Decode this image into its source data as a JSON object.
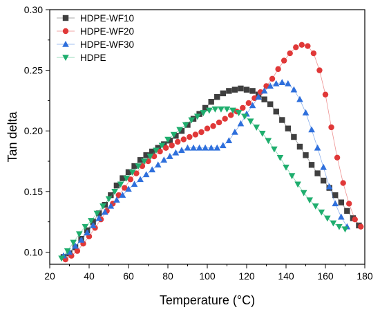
{
  "chart_data": {
    "type": "scatter",
    "xlabel": "Temperature (°C)",
    "ylabel": "Tan delta",
    "xlim": [
      20,
      180
    ],
    "ylim": [
      0.09,
      0.3
    ],
    "xticks": [
      20,
      40,
      60,
      80,
      100,
      120,
      140,
      160,
      180
    ],
    "yticks": [
      0.1,
      0.15,
      0.2,
      0.25,
      0.3
    ],
    "ytick_labels": [
      "0.10",
      "0.15",
      "0.20",
      "0.25",
      "0.30"
    ],
    "grid": false,
    "legend_position": "top-left",
    "series": [
      {
        "name": "HDPE-WF10",
        "marker": "square",
        "color": "#3f3f3f",
        "x": [
          27,
          30,
          33,
          36,
          39,
          42,
          45,
          48,
          51,
          54,
          57,
          60,
          63,
          66,
          69,
          72,
          75,
          78,
          81,
          84,
          87,
          90,
          93,
          96,
          99,
          102,
          105,
          108,
          111,
          114,
          117,
          120,
          123,
          126,
          129,
          132,
          135,
          138,
          141,
          144,
          147,
          150,
          153,
          156,
          159,
          162,
          165,
          168,
          171,
          174,
          177
        ],
        "y": [
          0.096,
          0.099,
          0.104,
          0.111,
          0.118,
          0.125,
          0.132,
          0.139,
          0.147,
          0.155,
          0.161,
          0.166,
          0.171,
          0.176,
          0.18,
          0.183,
          0.186,
          0.189,
          0.192,
          0.196,
          0.2,
          0.205,
          0.21,
          0.214,
          0.219,
          0.224,
          0.228,
          0.231,
          0.233,
          0.234,
          0.235,
          0.234,
          0.233,
          0.23,
          0.226,
          0.222,
          0.216,
          0.209,
          0.202,
          0.195,
          0.187,
          0.18,
          0.172,
          0.165,
          0.159,
          0.153,
          0.147,
          0.141,
          0.134,
          0.128,
          0.122
        ]
      },
      {
        "name": "HDPE-WF20",
        "marker": "circle",
        "color": "#e03838",
        "x": [
          28,
          31,
          34,
          37,
          40,
          43,
          46,
          49,
          52,
          55,
          58,
          61,
          64,
          67,
          70,
          73,
          76,
          79,
          82,
          85,
          88,
          91,
          94,
          97,
          100,
          103,
          106,
          109,
          112,
          115,
          118,
          121,
          124,
          127,
          130,
          133,
          136,
          139,
          142,
          145,
          148,
          151,
          154,
          157,
          160,
          163,
          166,
          169,
          172,
          175,
          178
        ],
        "y": [
          0.094,
          0.097,
          0.101,
          0.107,
          0.113,
          0.12,
          0.127,
          0.134,
          0.14,
          0.147,
          0.153,
          0.16,
          0.165,
          0.171,
          0.175,
          0.179,
          0.183,
          0.186,
          0.188,
          0.191,
          0.193,
          0.195,
          0.197,
          0.199,
          0.202,
          0.204,
          0.207,
          0.21,
          0.213,
          0.216,
          0.219,
          0.223,
          0.227,
          0.232,
          0.237,
          0.243,
          0.251,
          0.258,
          0.264,
          0.269,
          0.271,
          0.27,
          0.264,
          0.25,
          0.23,
          0.203,
          0.178,
          0.157,
          0.14,
          0.127,
          0.121
        ]
      },
      {
        "name": "HDPE-WF30",
        "marker": "triangle-up",
        "color": "#2e6fdc",
        "x": [
          27,
          30,
          33,
          36,
          39,
          42,
          45,
          48,
          51,
          54,
          57,
          60,
          63,
          66,
          69,
          72,
          75,
          78,
          81,
          84,
          87,
          90,
          93,
          96,
          99,
          102,
          105,
          108,
          111,
          114,
          117,
          120,
          123,
          126,
          129,
          132,
          135,
          138,
          141,
          144,
          147,
          150,
          153,
          156,
          159,
          162,
          165,
          168,
          171
        ],
        "y": [
          0.097,
          0.1,
          0.105,
          0.11,
          0.116,
          0.122,
          0.128,
          0.133,
          0.138,
          0.143,
          0.147,
          0.152,
          0.156,
          0.16,
          0.164,
          0.168,
          0.172,
          0.176,
          0.179,
          0.182,
          0.184,
          0.186,
          0.186,
          0.186,
          0.186,
          0.186,
          0.186,
          0.188,
          0.192,
          0.199,
          0.206,
          0.214,
          0.221,
          0.228,
          0.233,
          0.237,
          0.239,
          0.24,
          0.239,
          0.234,
          0.226,
          0.215,
          0.201,
          0.186,
          0.17,
          0.154,
          0.14,
          0.129,
          0.121
        ]
      },
      {
        "name": "HDPE",
        "marker": "triangle-down",
        "color": "#1fae6e",
        "x": [
          26,
          29,
          32,
          35,
          38,
          41,
          44,
          47,
          50,
          53,
          56,
          59,
          62,
          65,
          68,
          71,
          74,
          77,
          80,
          83,
          86,
          89,
          92,
          95,
          98,
          101,
          104,
          107,
          110,
          113,
          116,
          119,
          122,
          125,
          128,
          131,
          134,
          137,
          140,
          143,
          146,
          149,
          152,
          155,
          158,
          161,
          164,
          167,
          170
        ],
        "y": [
          0.095,
          0.101,
          0.108,
          0.115,
          0.121,
          0.126,
          0.132,
          0.138,
          0.144,
          0.15,
          0.156,
          0.161,
          0.166,
          0.171,
          0.175,
          0.179,
          0.184,
          0.188,
          0.193,
          0.197,
          0.201,
          0.205,
          0.209,
          0.212,
          0.215,
          0.217,
          0.218,
          0.218,
          0.218,
          0.217,
          0.215,
          0.212,
          0.208,
          0.203,
          0.198,
          0.192,
          0.185,
          0.178,
          0.17,
          0.163,
          0.156,
          0.149,
          0.143,
          0.138,
          0.133,
          0.128,
          0.124,
          0.121,
          0.119
        ]
      }
    ]
  }
}
